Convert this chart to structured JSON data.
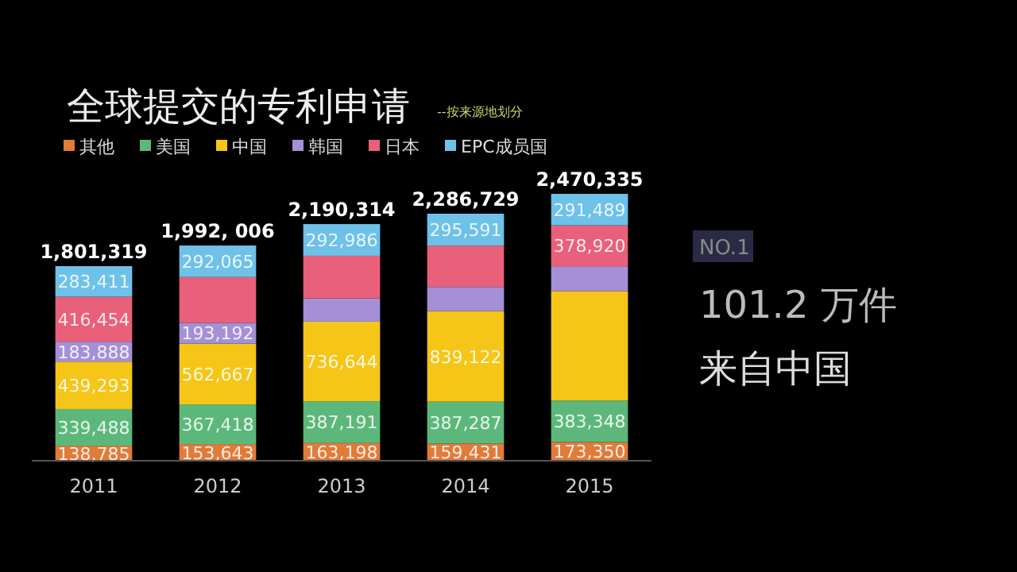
{
  "chart_data": {
    "type": "bar",
    "stacked": true,
    "title": "全球提交的专利申请",
    "subtitle": "--按来源地划分",
    "categories": [
      "2011",
      "2012",
      "2013",
      "2014",
      "2015"
    ],
    "series": [
      {
        "name": "其他",
        "color": "#e07b39",
        "values": [
          138785,
          153643,
          163198,
          159431,
          173350
        ],
        "value_labels": [
          "138,785",
          "153,643",
          "163,198",
          "159,431",
          "173,350"
        ]
      },
      {
        "name": "美国",
        "color": "#5cb87a",
        "values": [
          339488,
          367418,
          387191,
          387287,
          383348
        ],
        "value_labels": [
          "339,488",
          "367,418",
          "387,191",
          "387,287",
          "383,348"
        ]
      },
      {
        "name": "中国",
        "color": "#f5c518",
        "values": [
          439293,
          562667,
          736644,
          839122,
          1013854
        ],
        "value_labels": [
          "439,293",
          "562,667",
          "736,644",
          "839,122",
          null
        ]
      },
      {
        "name": "韩国",
        "color": "#a58fd6",
        "values": [
          183888,
          193192,
          216608,
          222431,
          229374
        ],
        "value_labels": [
          "183,888",
          "193,192",
          null,
          null,
          null
        ]
      },
      {
        "name": "日本",
        "color": "#e8607a",
        "values": [
          416454,
          423021,
          393687,
          382867,
          378920
        ],
        "value_labels": [
          "416,454",
          null,
          null,
          null,
          "378,920"
        ]
      },
      {
        "name": "EPC成员国",
        "color": "#6ec1e8",
        "values": [
          283411,
          292065,
          292986,
          295591,
          291489
        ],
        "value_labels": [
          "283,411",
          "292,065",
          "292,986",
          "295,591",
          "291,489"
        ]
      }
    ],
    "totals": [
      "1,801,319",
      "1,992, 006",
      "2,190,314",
      "2,286,729",
      "2,470,335"
    ],
    "legend": "top",
    "annotations": [
      "NO.1",
      "101.2 万件",
      "来自中国"
    ]
  }
}
